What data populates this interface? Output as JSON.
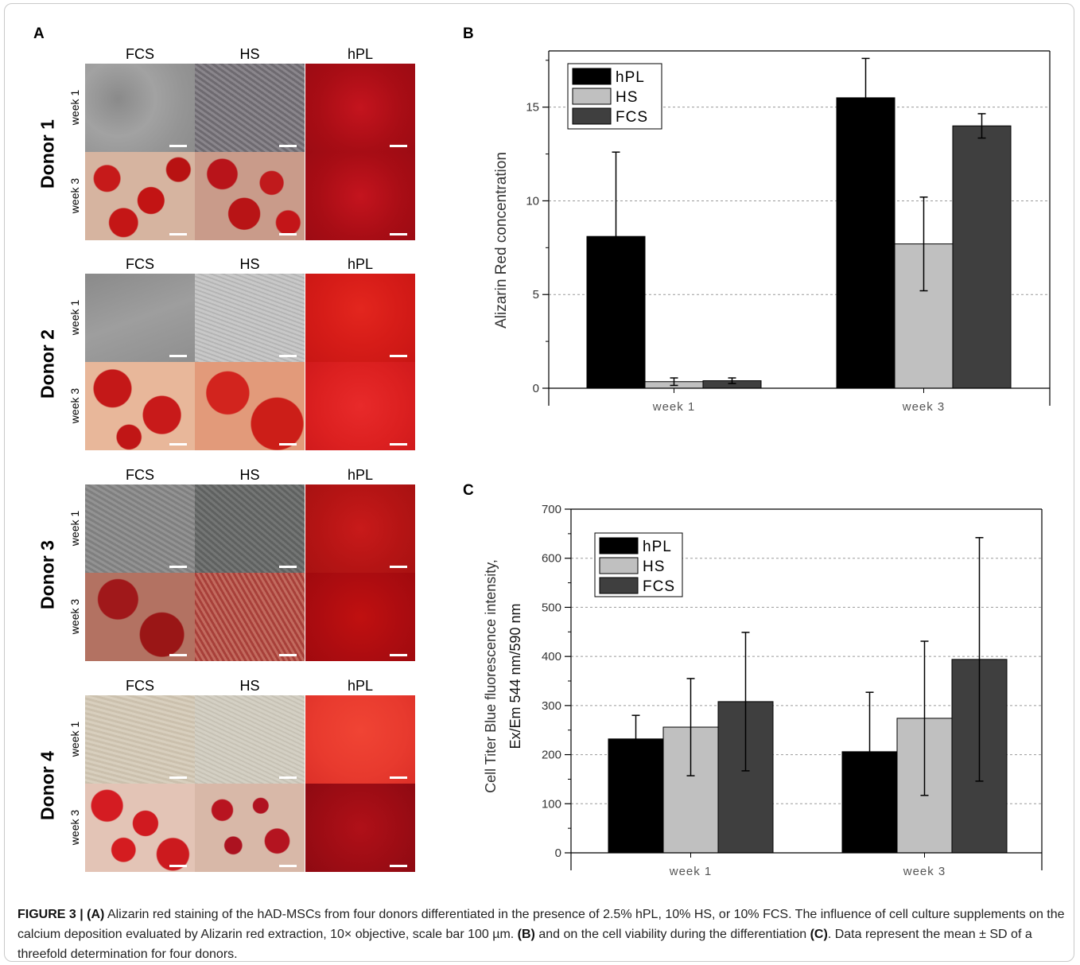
{
  "figure": {
    "panel_a": "A",
    "panel_b": "B",
    "panel_c": "C",
    "columns": [
      "FCS",
      "HS",
      "hPL"
    ],
    "weeks": [
      "week 1",
      "week 3"
    ],
    "donors": [
      "Donor 1",
      "Donor 2",
      "Donor 3",
      "Donor 4"
    ]
  },
  "caption": {
    "fig_label": "FIGURE 3 | ",
    "a_tag": "(A)",
    "part1": " Alizarin red staining of the hAD-MSCs from four donors differentiated in the presence of 2.5% hPL, 10% HS, or 10% FCS. The influence of cell culture supplements on the calcium deposition evaluated by Alizarin red extraction, 10× objective, scale bar 100 µm. ",
    "b_tag": "(B)",
    "part2": " and on the cell viability during the differentiation ",
    "c_tag": "(C)",
    "part3": ". Data represent the mean ± SD of a threefold determination for four donors."
  },
  "chart_data": [
    {
      "id": "B",
      "type": "bar",
      "categories": [
        "week 1",
        "week 3"
      ],
      "series": [
        {
          "name": "hPL",
          "values": [
            8.1,
            15.5
          ],
          "errors": [
            4.5,
            2.1
          ],
          "color": "#000000"
        },
        {
          "name": "HS",
          "values": [
            0.35,
            7.7
          ],
          "errors": [
            0.2,
            2.5
          ],
          "color": "#c0c0c0"
        },
        {
          "name": "FCS",
          "values": [
            0.4,
            14.0
          ],
          "errors": [
            0.15,
            0.65
          ],
          "color": "#3f3f3f"
        }
      ],
      "ylabel": "Alizarin Red concentration",
      "ylim": [
        0,
        18
      ],
      "yticks": [
        "0",
        "5",
        "10",
        "15"
      ],
      "grid": true,
      "legend": "top-left"
    },
    {
      "id": "C",
      "type": "bar",
      "categories": [
        "week 1",
        "week 3"
      ],
      "series": [
        {
          "name": "hPL",
          "values": [
            232,
            206
          ],
          "errors": [
            48,
            121
          ],
          "color": "#000000"
        },
        {
          "name": "HS",
          "values": [
            256,
            274
          ],
          "errors": [
            99,
            157
          ],
          "color": "#c0c0c0"
        },
        {
          "name": "FCS",
          "values": [
            308,
            394
          ],
          "errors": [
            141,
            248
          ],
          "color": "#3f3f3f"
        }
      ],
      "ylabel_line1": "Cell Titer Blue fluorescence intensity,",
      "ylabel_line2": "Ex/Em 544 nm/590 nm",
      "ylim": [
        0,
        700
      ],
      "yticks": [
        "0",
        "100",
        "200",
        "300",
        "400",
        "500",
        "600",
        "700"
      ],
      "grid": true,
      "legend": "top-left"
    }
  ]
}
